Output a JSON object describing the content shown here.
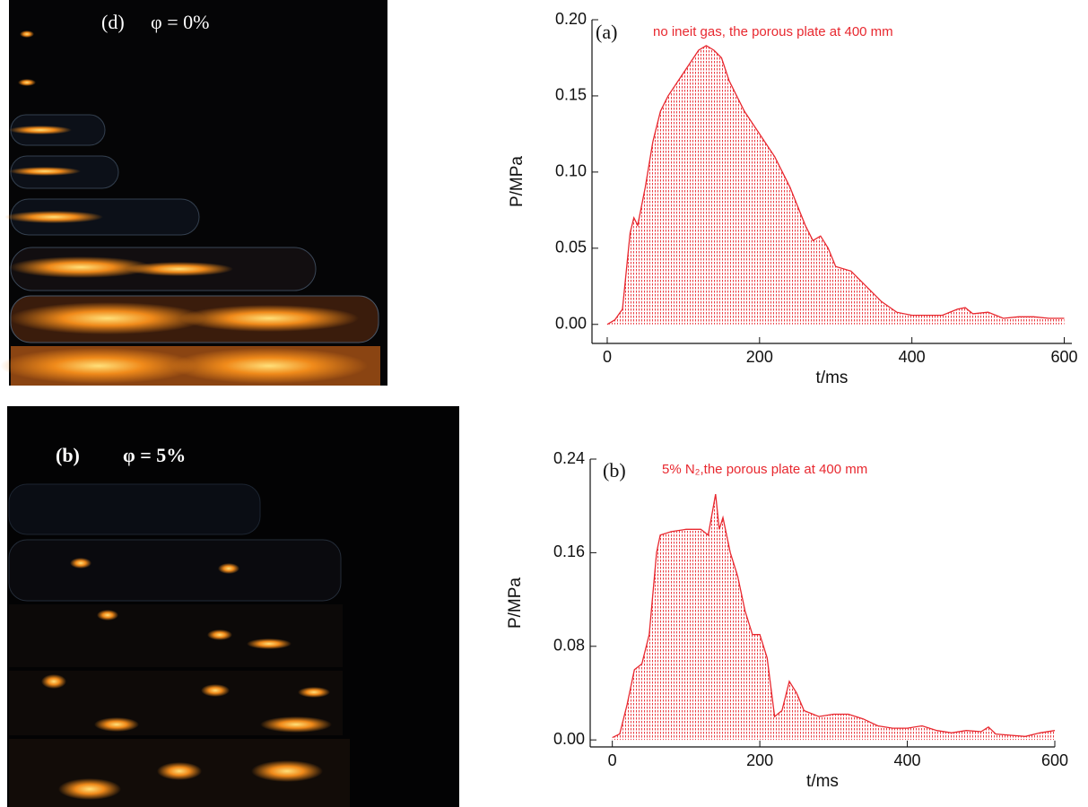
{
  "images": [
    {
      "label": "(d)",
      "caption": "φ = 0%"
    },
    {
      "label": "(b)",
      "caption": "φ = 5%"
    }
  ],
  "chart_data": [
    {
      "type": "line",
      "annotation_label": "(a)",
      "annotation": "no ineit gas, the porous plate at 400 mm",
      "xlabel": "t/ms",
      "ylabel": "P/MPa",
      "color": "#e8282f",
      "x": [
        0,
        10,
        20,
        30,
        35,
        40,
        50,
        60,
        70,
        80,
        100,
        120,
        130,
        140,
        150,
        160,
        180,
        200,
        220,
        240,
        260,
        270,
        280,
        290,
        300,
        320,
        340,
        360,
        380,
        400,
        420,
        440,
        460,
        470,
        480,
        500,
        520,
        540,
        560,
        580,
        600
      ],
      "values": [
        0.0,
        0.003,
        0.01,
        0.06,
        0.07,
        0.065,
        0.09,
        0.12,
        0.14,
        0.15,
        0.165,
        0.18,
        0.183,
        0.18,
        0.175,
        0.16,
        0.14,
        0.125,
        0.11,
        0.09,
        0.065,
        0.055,
        0.058,
        0.05,
        0.038,
        0.035,
        0.025,
        0.015,
        0.008,
        0.006,
        0.006,
        0.006,
        0.01,
        0.011,
        0.007,
        0.008,
        0.004,
        0.005,
        0.005,
        0.004,
        0.004
      ],
      "xlim": [
        -20,
        610
      ],
      "ylim": [
        -0.0125,
        0.2
      ],
      "xticks": [
        0,
        200,
        400,
        600
      ],
      "yticks": [
        {
          "value": 0,
          "label": "0.00"
        },
        {
          "value": 0.05,
          "label": "0.05"
        },
        {
          "value": 0.1,
          "label": "0.10"
        },
        {
          "value": 0.15,
          "label": "0.15"
        },
        {
          "value": 0.2,
          "label": "0.20"
        }
      ]
    },
    {
      "type": "line",
      "annotation_label": "(b)",
      "annotation": "5% N₂,the porous plate at 400 mm",
      "xlabel": "t/ms",
      "ylabel": "P/MPa",
      "color": "#e8282f",
      "x": [
        0,
        10,
        20,
        30,
        40,
        50,
        60,
        65,
        80,
        100,
        120,
        130,
        140,
        145,
        150,
        160,
        170,
        180,
        190,
        200,
        210,
        220,
        230,
        240,
        250,
        260,
        280,
        300,
        320,
        340,
        360,
        380,
        400,
        420,
        440,
        460,
        480,
        500,
        510,
        520,
        540,
        560,
        580,
        600
      ],
      "values": [
        0.002,
        0.005,
        0.03,
        0.06,
        0.065,
        0.09,
        0.16,
        0.175,
        0.178,
        0.18,
        0.18,
        0.175,
        0.21,
        0.18,
        0.19,
        0.16,
        0.14,
        0.11,
        0.09,
        0.09,
        0.07,
        0.02,
        0.025,
        0.05,
        0.04,
        0.025,
        0.02,
        0.022,
        0.022,
        0.018,
        0.012,
        0.01,
        0.01,
        0.012,
        0.008,
        0.006,
        0.008,
        0.007,
        0.011,
        0.005,
        0.004,
        0.003,
        0.006,
        0.008
      ],
      "xlim": [
        -30,
        600
      ],
      "ylim": [
        -0.006,
        0.24
      ],
      "xticks": [
        0,
        200,
        400,
        600
      ],
      "yticks": [
        {
          "value": 0,
          "label": "0.00"
        },
        {
          "value": 0.08,
          "label": "0.08"
        },
        {
          "value": 0.16,
          "label": "0.16"
        },
        {
          "value": 0.24,
          "label": "0.24"
        }
      ]
    }
  ]
}
